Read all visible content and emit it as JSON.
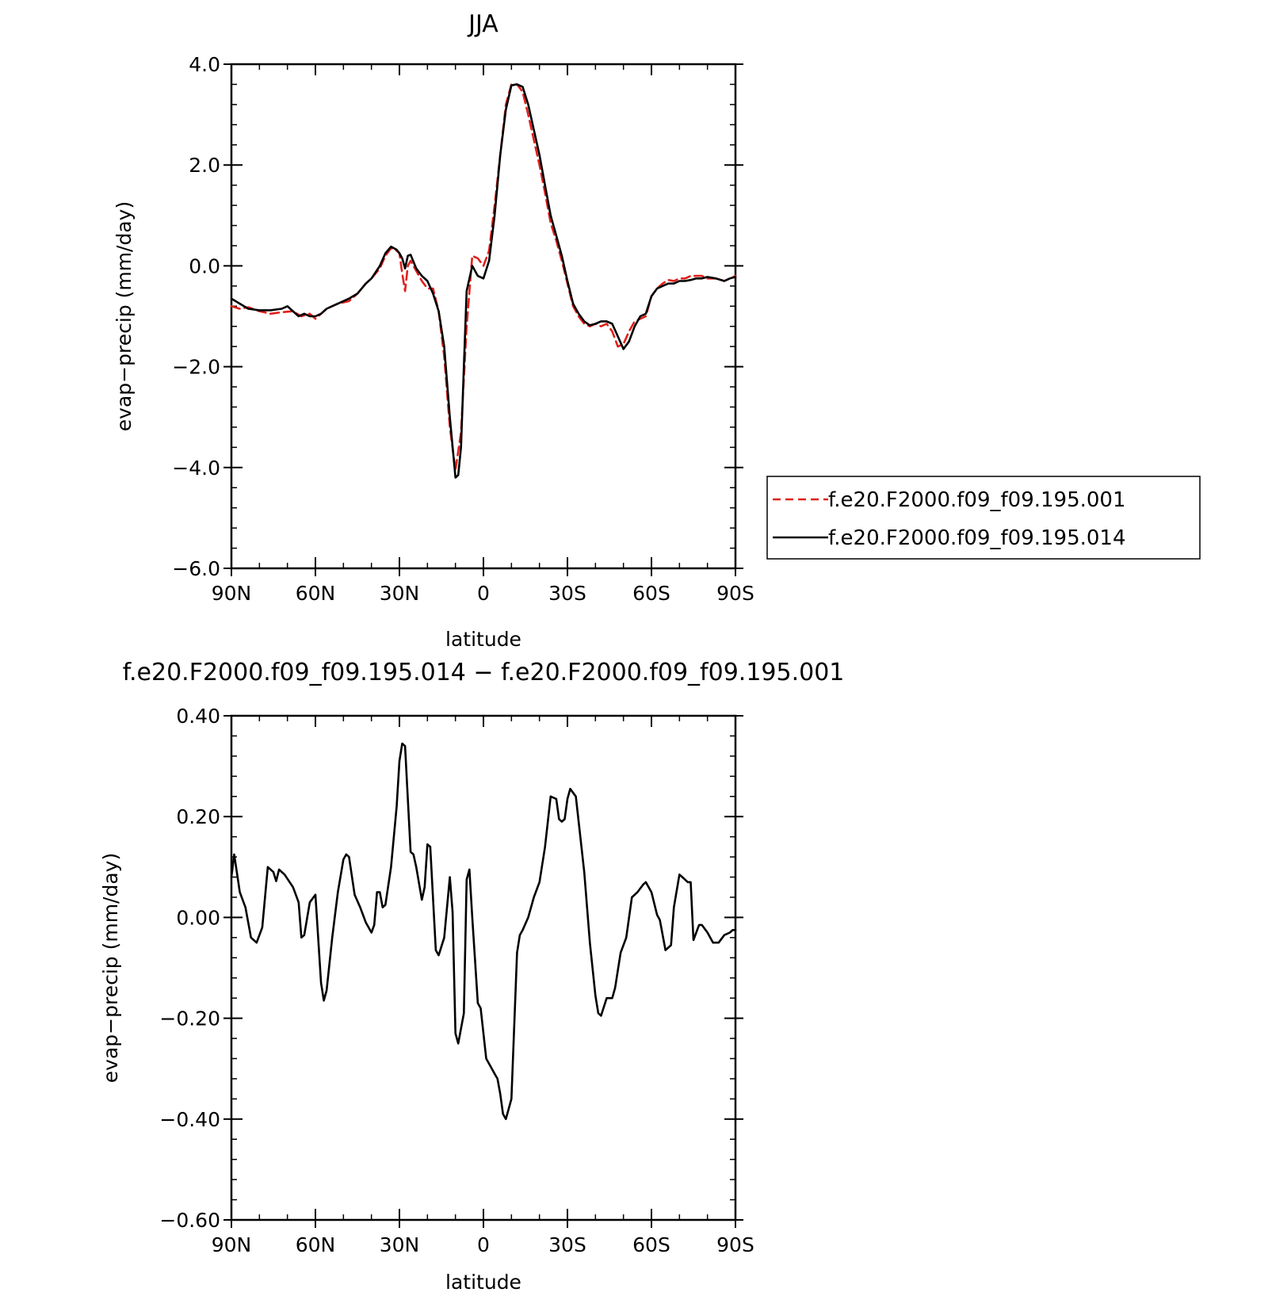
{
  "chart_data": [
    {
      "type": "line",
      "title": "JJA",
      "xlabel": "latitude",
      "ylabel": "evap−precip (mm/day)",
      "xlim": [
        90,
        -90
      ],
      "ylim": [
        -6.0,
        4.0
      ],
      "xticks": [
        {
          "value": 90,
          "label": "90N"
        },
        {
          "value": 60,
          "label": "60N"
        },
        {
          "value": 30,
          "label": "30N"
        },
        {
          "value": 0,
          "label": "0"
        },
        {
          "value": -30,
          "label": "30S"
        },
        {
          "value": -60,
          "label": "60S"
        },
        {
          "value": -90,
          "label": "90S"
        }
      ],
      "yticks": [
        {
          "value": 4.0,
          "label": "4.0"
        },
        {
          "value": 2.0,
          "label": "2.0"
        },
        {
          "value": 0.0,
          "label": "0.0"
        },
        {
          "value": -2.0,
          "label": "−2.0"
        },
        {
          "value": -4.0,
          "label": "−4.0"
        },
        {
          "value": -6.0,
          "label": "−6.0"
        }
      ],
      "grid": false,
      "legend_position": "right",
      "series": [
        {
          "name": "f.e20.F2000.f09_f09.195.001",
          "color": "#e0201c",
          "dash": "dashed",
          "x": [
            90,
            87,
            84,
            80,
            76,
            72,
            68,
            65,
            62,
            60,
            58,
            56,
            52,
            48,
            45,
            42,
            40,
            37,
            35,
            33,
            31,
            30,
            29,
            28,
            27,
            26,
            24,
            22,
            20,
            18,
            16,
            14,
            12,
            10,
            8,
            6,
            4,
            2,
            0,
            -2,
            -4,
            -6,
            -8,
            -10,
            -12,
            -14,
            -16,
            -18,
            -20,
            -22,
            -24,
            -26,
            -28,
            -30,
            -32,
            -34,
            -36,
            -38,
            -40,
            -42,
            -44,
            -46,
            -48,
            -50,
            -52,
            -54,
            -56,
            -58,
            -60,
            -62,
            -64,
            -66,
            -68,
            -70,
            -72,
            -74,
            -76,
            -78,
            -80,
            -83,
            -86,
            -88,
            -90
          ],
          "y": [
            -0.8,
            -0.85,
            -0.82,
            -0.9,
            -0.95,
            -0.92,
            -0.9,
            -1.0,
            -0.95,
            -1.05,
            -0.95,
            -0.85,
            -0.75,
            -0.7,
            -0.55,
            -0.35,
            -0.25,
            -0.05,
            0.2,
            0.35,
            0.3,
            0.25,
            -0.15,
            -0.5,
            0.0,
            0.1,
            -0.1,
            -0.3,
            -0.45,
            -0.45,
            -0.9,
            -1.8,
            -3.2,
            -4.05,
            -3.3,
            -1.2,
            0.2,
            0.15,
            0.0,
            0.3,
            1.2,
            2.2,
            3.2,
            3.6,
            3.6,
            3.45,
            3.0,
            2.5,
            2.0,
            1.45,
            0.85,
            0.5,
            0.1,
            -0.35,
            -0.8,
            -1.0,
            -1.15,
            -1.2,
            -1.15,
            -1.2,
            -1.15,
            -1.3,
            -1.6,
            -1.55,
            -1.3,
            -1.1,
            -1.05,
            -1.0,
            -0.6,
            -0.45,
            -0.35,
            -0.28,
            -0.3,
            -0.25,
            -0.25,
            -0.2,
            -0.2,
            -0.2,
            -0.25,
            -0.25,
            -0.3,
            -0.25,
            -0.2
          ]
        },
        {
          "name": "f.e20.F2000.f09_f09.195.014",
          "color": "#000000",
          "dash": "solid",
          "x": [
            90,
            87,
            84,
            80,
            76,
            72,
            70,
            68,
            66,
            64,
            62,
            60,
            58,
            56,
            52,
            48,
            45,
            42,
            40,
            37,
            35,
            33,
            31,
            30,
            29,
            28,
            27,
            26,
            24,
            22,
            20,
            18,
            16,
            14,
            12,
            10,
            9,
            8,
            7,
            6,
            4,
            2,
            0,
            -2,
            -4,
            -6,
            -8,
            -10,
            -12,
            -14,
            -16,
            -18,
            -20,
            -22,
            -24,
            -26,
            -28,
            -30,
            -32,
            -34,
            -36,
            -38,
            -40,
            -42,
            -44,
            -46,
            -48,
            -50,
            -52,
            -54,
            -56,
            -58,
            -60,
            -62,
            -64,
            -66,
            -68,
            -70,
            -72,
            -74,
            -76,
            -78,
            -80,
            -83,
            -86,
            -88,
            -90
          ],
          "y": [
            -0.65,
            -0.75,
            -0.85,
            -0.88,
            -0.88,
            -0.85,
            -0.8,
            -0.9,
            -1.0,
            -0.95,
            -1.0,
            -1.0,
            -0.95,
            -0.85,
            -0.75,
            -0.65,
            -0.55,
            -0.35,
            -0.25,
            0.0,
            0.25,
            0.38,
            0.32,
            0.25,
            0.15,
            -0.05,
            0.2,
            0.22,
            -0.05,
            -0.2,
            -0.3,
            -0.55,
            -0.9,
            -1.6,
            -3.0,
            -4.2,
            -4.15,
            -3.6,
            -2.0,
            -0.5,
            0.0,
            -0.2,
            -0.25,
            0.1,
            1.0,
            2.2,
            3.1,
            3.58,
            3.6,
            3.55,
            3.2,
            2.7,
            2.2,
            1.6,
            1.0,
            0.6,
            0.2,
            -0.3,
            -0.75,
            -0.95,
            -1.1,
            -1.18,
            -1.15,
            -1.1,
            -1.1,
            -1.15,
            -1.4,
            -1.65,
            -1.5,
            -1.2,
            -1.0,
            -0.95,
            -0.6,
            -0.45,
            -0.4,
            -0.35,
            -0.35,
            -0.3,
            -0.3,
            -0.28,
            -0.25,
            -0.25,
            -0.22,
            -0.25,
            -0.3,
            -0.25,
            -0.22
          ]
        }
      ]
    },
    {
      "type": "line",
      "title": "f.e20.F2000.f09_f09.195.014 − f.e20.F2000.f09_f09.195.001",
      "xlabel": "latitude",
      "ylabel": "evap−precip (mm/day)",
      "xlim": [
        90,
        -90
      ],
      "ylim": [
        -0.6,
        0.4
      ],
      "xticks": [
        {
          "value": 90,
          "label": "90N"
        },
        {
          "value": 60,
          "label": "60N"
        },
        {
          "value": 30,
          "label": "30N"
        },
        {
          "value": 0,
          "label": "0"
        },
        {
          "value": -30,
          "label": "30S"
        },
        {
          "value": -60,
          "label": "60S"
        },
        {
          "value": -90,
          "label": "90S"
        }
      ],
      "yticks": [
        {
          "value": 0.4,
          "label": "0.40"
        },
        {
          "value": 0.2,
          "label": "0.20"
        },
        {
          "value": 0.0,
          "label": "0.00"
        },
        {
          "value": -0.2,
          "label": "−0.20"
        },
        {
          "value": -0.4,
          "label": "−0.40"
        },
        {
          "value": -0.6,
          "label": "−0.60"
        }
      ],
      "grid": false,
      "series": [
        {
          "color": "#000000",
          "dash": "solid",
          "x": [
            90,
            89,
            87,
            85,
            83,
            81,
            79,
            77,
            75,
            74,
            73,
            71,
            68,
            66,
            65,
            64,
            62,
            60,
            58,
            57,
            56,
            54,
            52,
            50,
            49,
            48,
            46,
            44,
            42,
            40,
            39,
            38,
            37,
            36,
            35,
            33,
            31,
            30,
            29,
            28,
            26,
            25,
            24,
            22,
            21,
            20,
            19,
            17,
            16,
            14,
            12,
            11,
            10,
            9,
            7,
            6,
            5,
            4,
            2,
            1,
            -1,
            -3,
            -4,
            -5,
            -6,
            -7,
            -8,
            -10,
            -12,
            -13,
            -14,
            -16,
            -18,
            -20,
            -22,
            -24,
            -26,
            -27,
            -28,
            -29,
            -30,
            -31,
            -33,
            -36,
            -38,
            -40,
            -41,
            -42,
            -44,
            -46,
            -47,
            -49,
            -51,
            -53,
            -54,
            -55,
            -57,
            -58,
            -60,
            -62,
            -63,
            -65,
            -67,
            -68,
            -70,
            -71,
            -72,
            -73,
            -74,
            -75,
            -76,
            -77,
            -78,
            -80,
            -82,
            -84,
            -86,
            -88,
            -89,
            -90
          ],
          "y": [
            0.08,
            0.125,
            0.05,
            0.02,
            -0.04,
            -0.05,
            -0.02,
            0.1,
            0.09,
            0.072,
            0.095,
            0.085,
            0.06,
            0.03,
            -0.04,
            -0.035,
            0.03,
            0.045,
            -0.13,
            -0.165,
            -0.145,
            -0.04,
            0.05,
            0.115,
            0.125,
            0.12,
            0.045,
            0.02,
            -0.01,
            -0.03,
            -0.015,
            0.05,
            0.05,
            0.02,
            0.025,
            0.1,
            0.22,
            0.31,
            0.345,
            0.34,
            0.13,
            0.125,
            0.1,
            0.035,
            0.06,
            0.145,
            0.14,
            -0.065,
            -0.075,
            -0.04,
            0.08,
            0.01,
            -0.23,
            -0.25,
            -0.19,
            0.075,
            0.095,
            0.0,
            -0.17,
            -0.18,
            -0.28,
            -0.3,
            -0.31,
            -0.32,
            -0.35,
            -0.39,
            -0.4,
            -0.36,
            -0.07,
            -0.035,
            -0.025,
            0.0,
            0.04,
            0.07,
            0.14,
            0.24,
            0.235,
            0.195,
            0.19,
            0.195,
            0.235,
            0.255,
            0.24,
            0.09,
            -0.05,
            -0.155,
            -0.19,
            -0.195,
            -0.16,
            -0.16,
            -0.14,
            -0.07,
            -0.04,
            0.04,
            0.045,
            0.05,
            0.065,
            0.07,
            0.05,
            0.005,
            -0.005,
            -0.065,
            -0.055,
            0.02,
            0.085,
            0.08,
            0.075,
            0.07,
            0.07,
            -0.045,
            -0.03,
            -0.015,
            -0.015,
            -0.03,
            -0.05,
            -0.05,
            -0.035,
            -0.03,
            -0.025,
            -0.025
          ]
        }
      ]
    }
  ]
}
